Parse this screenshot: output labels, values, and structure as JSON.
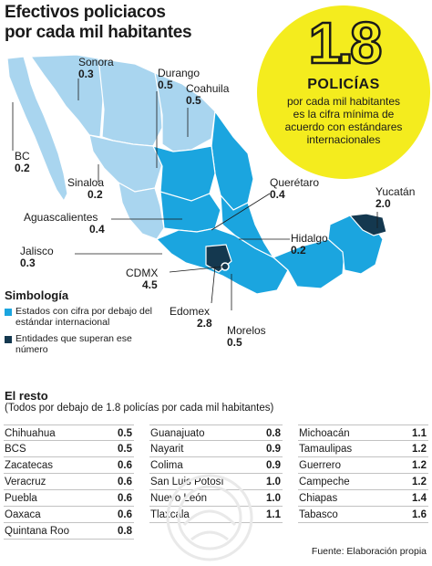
{
  "title_line1": "Efectivos policiacos",
  "title_line2": "por cada mil habitantes",
  "callout": {
    "value": "1.8",
    "label": "POLICÍAS",
    "desc_line1": "por cada mil habitantes",
    "desc_line2": "es la cifra mínima de",
    "desc_line3": "acuerdo con estándares",
    "desc_line4": "internacionales"
  },
  "colors": {
    "below_standard": "#1ba5df",
    "below_standard_light": "#a9d5ef",
    "above_standard": "#14384f",
    "callout_yellow": "#f4ec1e"
  },
  "map_labels": {
    "sonora": {
      "name": "Sonora",
      "value": "0.3"
    },
    "durango": {
      "name": "Durango",
      "value": "0.5"
    },
    "coahuila": {
      "name": "Coahuila",
      "value": "0.5"
    },
    "bc": {
      "name": "BC",
      "value": "0.2"
    },
    "sinaloa": {
      "name": "Sinaloa",
      "value": "0.2"
    },
    "queretaro": {
      "name": "Querétaro",
      "value": "0.4"
    },
    "yucatan": {
      "name": "Yucatán",
      "value": "2.0"
    },
    "aguascalientes": {
      "name": "Aguascalientes",
      "value": "0.4"
    },
    "hidalgo": {
      "name": "Hidalgo",
      "value": "0.2"
    },
    "jalisco": {
      "name": "Jalisco",
      "value": "0.3"
    },
    "cdmx": {
      "name": "CDMX",
      "value": "4.5"
    },
    "edomex": {
      "name": "Edomex",
      "value": "2.8"
    },
    "morelos": {
      "name": "Morelos",
      "value": "0.5"
    }
  },
  "legend": {
    "title": "Simbología",
    "item1": "Estados con cifra por debajo del estándar internacional",
    "item2": "Entidades que superan ese número"
  },
  "resto": {
    "title": "El resto",
    "subtitle": "(Todos por debajo de 1.8 policías por cada mil habitantes)"
  },
  "table": {
    "col1": [
      {
        "state": "Chihuahua",
        "value": "0.5"
      },
      {
        "state": "BCS",
        "value": "0.5"
      },
      {
        "state": "Zacatecas",
        "value": "0.6"
      },
      {
        "state": "Veracruz",
        "value": "0.6"
      },
      {
        "state": "Puebla",
        "value": "0.6"
      },
      {
        "state": "Oaxaca",
        "value": "0.6"
      },
      {
        "state": "Quintana Roo",
        "value": "0.8"
      }
    ],
    "col2": [
      {
        "state": "Guanajuato",
        "value": "0.8"
      },
      {
        "state": "Nayarit",
        "value": "0.9"
      },
      {
        "state": "Colima",
        "value": "0.9"
      },
      {
        "state": "San Luis Potosí",
        "value": "1.0"
      },
      {
        "state": "Nuevo León",
        "value": "1.0"
      },
      {
        "state": "Tlaxcala",
        "value": "1.1"
      }
    ],
    "col3": [
      {
        "state": "Michoacán",
        "value": "1.1"
      },
      {
        "state": "Tamaulipas",
        "value": "1.2"
      },
      {
        "state": "Guerrero",
        "value": "1.2"
      },
      {
        "state": "Campeche",
        "value": "1.2"
      },
      {
        "state": "Chiapas",
        "value": "1.4"
      },
      {
        "state": "Tabasco",
        "value": "1.6"
      }
    ]
  },
  "source": "Fuente: Elaboración propia"
}
